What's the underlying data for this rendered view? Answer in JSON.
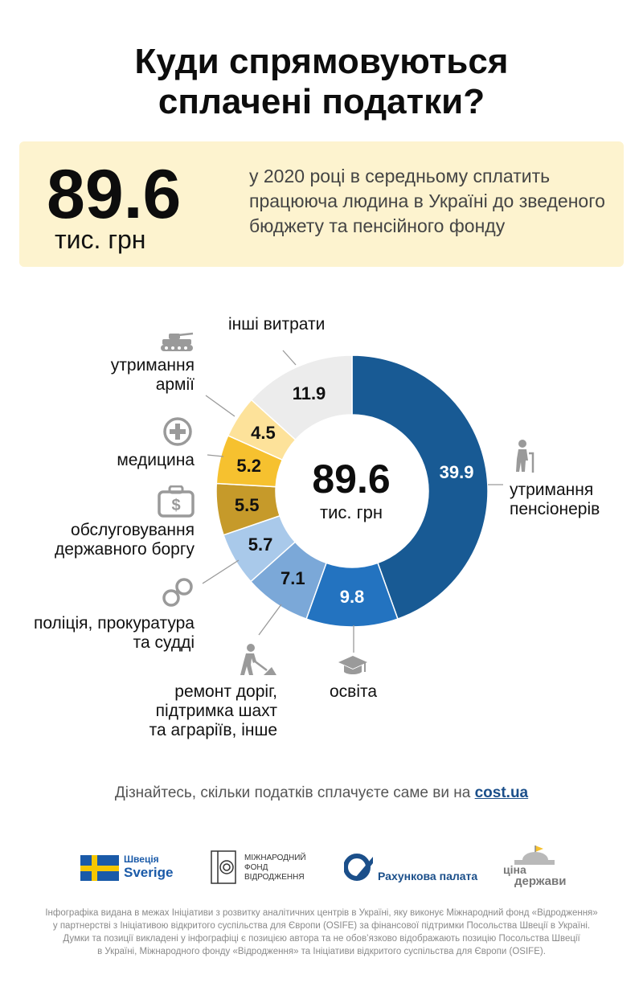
{
  "title": {
    "line1": "Куди спрямовуються",
    "line2": "сплачені податки?"
  },
  "summary": {
    "value": "89.6",
    "unit": "тис. грн",
    "description": "у 2020 році в середньому сплатить працююча людина в Україні до зведеного бюджету та пенсійного фонду"
  },
  "chart_data": {
    "type": "pie",
    "subtype": "donut",
    "total": 89.6,
    "center_value": "89.6",
    "center_unit": "тис. грн",
    "slices": [
      {
        "label": "утримання пенсіонерів",
        "value": 39.9,
        "color": "#185a94",
        "text_color": "#ffffff"
      },
      {
        "label": "освіта",
        "value": 9.8,
        "color": "#2373c0",
        "text_color": "#ffffff"
      },
      {
        "label": "ремонт доріг, підтримка шахт та аграріїв, інше",
        "value": 7.1,
        "color": "#7ba8d8",
        "text_color": "#111111"
      },
      {
        "label": "поліція, прокуратура та судді",
        "value": 5.7,
        "color": "#a9c9ea",
        "text_color": "#111111"
      },
      {
        "label": "обслуговування державного боргу",
        "value": 5.5,
        "color": "#c69a2a",
        "text_color": "#111111"
      },
      {
        "label": "медицина",
        "value": 5.2,
        "color": "#f6c12f",
        "text_color": "#111111"
      },
      {
        "label": "утримання армії",
        "value": 4.5,
        "color": "#fde29a",
        "text_color": "#111111"
      },
      {
        "label": "інші витрати",
        "value": 11.9,
        "color": "#ececec",
        "text_color": "#111111"
      }
    ]
  },
  "labels": {
    "pensioners": [
      "утримання",
      "пенсіонерів"
    ],
    "education": [
      "освіта"
    ],
    "roads": [
      "ремонт доріг,",
      "підтримка шахт",
      "та аграріїв, інше"
    ],
    "police": [
      "поліція, прокуратура",
      "та судді"
    ],
    "debt": [
      "обслуговування",
      "державного боргу"
    ],
    "medicine": [
      "медицина"
    ],
    "army": [
      "утримання",
      "армії"
    ],
    "other": [
      "інші витрати"
    ]
  },
  "icons": {
    "pensioners": "elderly-person-icon",
    "education": "graduation-cap-icon",
    "roads": "road-worker-icon",
    "police": "handcuffs-icon",
    "debt": "money-case-icon",
    "medicine": "medical-cross-icon",
    "army": "tank-icon"
  },
  "footer": {
    "text": "Дізнайтесь, скільки податків сплачуєте саме ви на ",
    "link": "cost.ua"
  },
  "logos": {
    "sweden_top": "Швеція",
    "sweden_bottom": "Sverige",
    "irf": [
      "МІЖНАРОДНИЙ",
      "ФОНД",
      "ВІДРОДЖЕННЯ"
    ],
    "accounting": "Рахункова палата",
    "cina_top": "ціна",
    "cina_bottom": "держави"
  },
  "disclaimer": [
    "Інфографіка видана в межах Ініціативи з розвитку аналітичних центрів в Україні, яку виконує Міжнародний фонд «Відродження»",
    "у партнерстві з Ініціативою відкритого суспільства для Європи (OSIFE) за фінансової підтримки Посольства Швеції в Україні.",
    "Думки та позиції викладені у інфографіці є позицією автора та не обов’язково відображають позицію Посольства Швеції",
    "в Україні, Міжнародного фонду «Відродження» та Ініціативи відкритого суспільства для Європи (OSIFE)."
  ]
}
